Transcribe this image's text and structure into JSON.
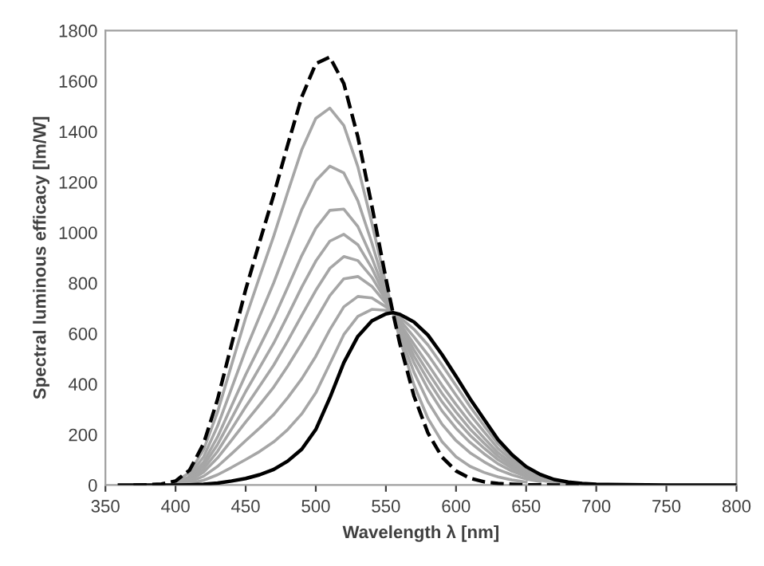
{
  "chart_data": {
    "type": "line",
    "xlabel": "Wavelength λ [nm]",
    "ylabel": "Spectral luminous efficacy [lm/W]",
    "x": [
      360,
      380,
      390,
      400,
      410,
      420,
      430,
      440,
      450,
      460,
      470,
      480,
      490,
      500,
      510,
      520,
      530,
      540,
      550,
      555,
      560,
      570,
      580,
      590,
      600,
      610,
      620,
      630,
      640,
      650,
      660,
      670,
      680,
      690,
      700,
      750,
      800
    ],
    "series": [
      {
        "color": "#a6a6a6",
        "line_style": "solid",
        "x": [
          400,
          410,
          420,
          430,
          440,
          450,
          460,
          470,
          480,
          490,
          500,
          510,
          520,
          530,
          540,
          550,
          555,
          560,
          570,
          580,
          590,
          600,
          610,
          620,
          630,
          640,
          650
        ],
        "values": [
          13,
          50,
          140,
          290,
          477,
          662,
          826,
          986,
          1160,
          1328,
          1452,
          1493,
          1424,
          1261,
          1037,
          797,
          683,
          577,
          397,
          264,
          172,
          112,
          74,
          50,
          32,
          20,
          12
        ]
      },
      {
        "color": "#a6a6a6",
        "line_style": "solid",
        "x": [
          410,
          420,
          430,
          440,
          450,
          460,
          470,
          480,
          490,
          500,
          510,
          520,
          530,
          540,
          550,
          555,
          560,
          570,
          580,
          590,
          600,
          610,
          620,
          630,
          640,
          650,
          660
        ],
        "values": [
          40,
          112,
          234,
          384,
          535,
          669,
          801,
          947,
          1091,
          1205,
          1263,
          1236,
          1126,
          959,
          773,
          683,
          596,
          447,
          330,
          241,
          176,
          128,
          92,
          61,
          40,
          24,
          14
        ]
      },
      {
        "color": "#a6a6a6",
        "line_style": "solid",
        "x": [
          400,
          410,
          420,
          430,
          440,
          450,
          460,
          470,
          480,
          490,
          500,
          510,
          520,
          530,
          540,
          550,
          555,
          560,
          570,
          580,
          590,
          600,
          610,
          620,
          630,
          640,
          650,
          660,
          670
        ],
        "values": [
          9,
          33,
          91,
          191,
          314,
          437,
          549,
          660,
          784,
          909,
          1017,
          1088,
          1093,
          1024,
          900,
          755,
          683,
          612,
          485,
          381,
          294,
          225,
          169,
          124,
          84,
          55,
          34,
          19,
          10
        ]
      },
      {
        "color": "#a6a6a6",
        "line_style": "solid",
        "x": [
          410,
          420,
          430,
          440,
          450,
          460,
          470,
          480,
          490,
          500,
          510,
          520,
          530,
          540,
          550,
          555,
          560,
          570,
          580,
          590,
          600,
          610,
          620,
          630,
          640,
          650,
          660,
          670,
          680
        ],
        "values": [
          28,
          77,
          161,
          265,
          370,
          466,
          562,
          671,
          784,
          887,
          966,
          993,
          952,
          859,
          742,
          683,
          622,
          511,
          416,
          330,
          259,
          197,
          146,
          100,
          66,
          40,
          23,
          12,
          6
        ]
      },
      {
        "color": "#a6a6a6",
        "line_style": "solid",
        "x": [
          400,
          410,
          420,
          430,
          440,
          450,
          460,
          470,
          480,
          490,
          500,
          510,
          520,
          530,
          540,
          550,
          555,
          560,
          570,
          580,
          590,
          600,
          610,
          620,
          630,
          640,
          650,
          660,
          670,
          680,
          690
        ],
        "values": [
          6,
          23,
          64,
          134,
          222,
          310,
          392,
          475,
          571,
          672,
          771,
          858,
          905,
          889,
          823,
          731,
          683,
          632,
          535,
          447,
          363,
          289,
          222,
          166,
          114,
          75,
          46,
          26,
          14,
          7,
          4
        ]
      },
      {
        "color": "#a6a6a6",
        "line_style": "solid",
        "x": [
          410,
          420,
          430,
          440,
          450,
          460,
          470,
          480,
          490,
          500,
          510,
          520,
          530,
          540,
          550,
          555,
          560,
          570,
          580,
          590,
          600,
          610,
          620,
          630,
          640,
          650,
          660,
          670,
          680,
          690,
          700
        ],
        "values": [
          18,
          51,
          108,
          178,
          250,
          318,
          388,
          471,
          561,
          655,
          750,
          817,
          826,
          787,
          720,
          683,
          641,
          558,
          478,
          395,
          319,
          248,
          186,
          128,
          85,
          52,
          30,
          16,
          8,
          4,
          2
        ]
      },
      {
        "color": "#a6a6a6",
        "line_style": "solid",
        "x": [
          400,
          410,
          420,
          430,
          440,
          450,
          460,
          470,
          480,
          490,
          500,
          510,
          520,
          530,
          540,
          550,
          555,
          560,
          570,
          580,
          590,
          600,
          610,
          620,
          630,
          640,
          650,
          660,
          670,
          680,
          690,
          700
        ],
        "values": [
          3,
          12,
          35,
          74,
          124,
          176,
          226,
          279,
          346,
          421,
          510,
          615,
          706,
          747,
          741,
          706,
          683,
          653,
          587,
          516,
          436,
          356,
          279,
          211,
          145,
          97,
          59,
          34,
          18,
          9,
          5,
          2
        ]
      },
      {
        "color": "#a6a6a6",
        "line_style": "solid",
        "x": [
          410,
          420,
          430,
          440,
          450,
          460,
          470,
          480,
          490,
          500,
          510,
          520,
          530,
          540,
          550,
          555,
          560,
          570,
          580,
          590,
          600,
          610,
          620,
          630,
          640,
          650,
          660,
          670,
          680,
          690
        ],
        "values": [
          7,
          19,
          41,
          70,
          101,
          133,
          171,
          220,
          282,
          365,
          480,
          596,
          668,
          696,
          692,
          683,
          664,
          617,
          555,
          476,
          394,
          311,
          235,
          163,
          108,
          66,
          38,
          20,
          10,
          5
        ]
      },
      {
        "color": "#000000",
        "line_style": "dashed",
        "x": [
          370,
          380,
          390,
          400,
          410,
          420,
          430,
          440,
          450,
          460,
          470,
          480,
          490,
          500,
          510,
          520,
          530,
          540,
          550,
          555,
          560,
          570,
          580,
          590,
          600,
          610,
          620,
          630,
          640,
          650,
          660,
          670,
          680,
          690
        ],
        "values": [
          0,
          1,
          4,
          16,
          59,
          164,
          340,
          558,
          774,
          964,
          1149,
          1348,
          1537,
          1669,
          1695,
          1590,
          1379,
          1105,
          818,
          683,
          559,
          353,
          206,
          111,
          56,
          27,
          13,
          6,
          3,
          1,
          1,
          0,
          0,
          0
        ]
      },
      {
        "color": "#000000",
        "line_style": "solid",
        "values": [
          0,
          0,
          0,
          0,
          1,
          3,
          8,
          16,
          26,
          41,
          62,
          95,
          142,
          220,
          345,
          485,
          589,
          650,
          678,
          683,
          676,
          646,
          594,
          517,
          431,
          342,
          260,
          180,
          120,
          73,
          42,
          22,
          12,
          6,
          3,
          0,
          0
        ]
      }
    ],
    "xlim": [
      350,
      800
    ],
    "xticks": [
      350,
      400,
      450,
      500,
      550,
      600,
      650,
      700,
      750,
      800
    ],
    "ylim": [
      0,
      1800
    ],
    "yticks": [
      0,
      200,
      400,
      600,
      800,
      1000,
      1200,
      1400,
      1600,
      1800
    ],
    "grid": false,
    "legend": false,
    "marker": "none"
  }
}
